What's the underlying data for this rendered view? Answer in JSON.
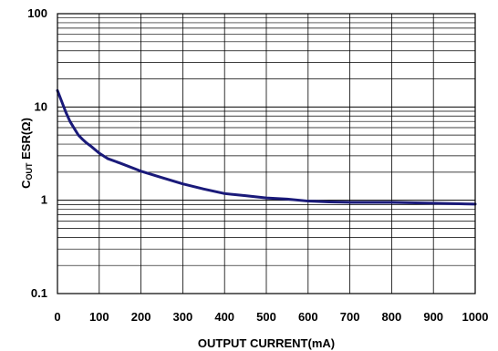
{
  "chart_data": {
    "type": "line",
    "title": "",
    "xlabel": "OUTPUT CURRENT(mA)",
    "ylabel": {
      "main": "C",
      "subscript": "OUT",
      "rest": " ESR(Ω)"
    },
    "xlim": [
      0,
      1000
    ],
    "ylim": [
      0.1,
      100
    ],
    "yscale": "log",
    "grid": true,
    "x_ticks": [
      0,
      100,
      200,
      300,
      400,
      500,
      600,
      700,
      800,
      900,
      1000
    ],
    "x_tick_labels": [
      "0",
      "100",
      "200",
      "300",
      "400",
      "500",
      "600",
      "700",
      "800",
      "900",
      "1000"
    ],
    "y_ticks": [
      0.1,
      1,
      10,
      100
    ],
    "y_tick_labels": [
      "0.1",
      "1",
      "10",
      "100"
    ],
    "series": [
      {
        "color": "#1a1a7a",
        "x": [
          0,
          10,
          20,
          30,
          40,
          50,
          60,
          70,
          80,
          100,
          120,
          150,
          200,
          250,
          300,
          350,
          400,
          450,
          500,
          550,
          600,
          650,
          700,
          800,
          900,
          1000
        ],
        "y": [
          15,
          11.5,
          8.8,
          7.0,
          5.9,
          5.0,
          4.5,
          4.1,
          3.8,
          3.2,
          2.8,
          2.5,
          2.05,
          1.75,
          1.5,
          1.32,
          1.18,
          1.12,
          1.06,
          1.03,
          0.98,
          0.96,
          0.95,
          0.95,
          0.93,
          0.91
        ]
      }
    ]
  }
}
